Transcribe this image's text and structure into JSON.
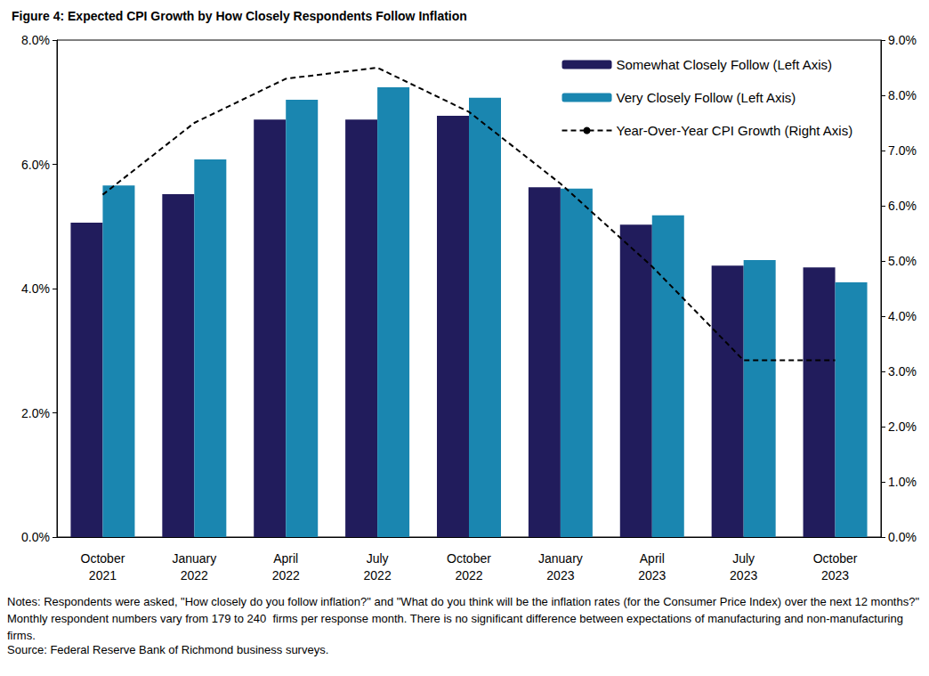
{
  "chart_data": {
    "type": "bar",
    "title": "Figure 4: Expected CPI Growth by How Closely Respondents Follow Inflation",
    "notes": "Notes: Respondents were asked, \"How closely do you follow inflation?\" and \"What do you think will be the inflation rates (for the Consumer Price Index) over the next 12 months?\" Monthly respondent numbers vary from 179 to 240  firms per response month. There is no significant difference between expectations of manufacturing and non-manufacturing firms.",
    "source": "Source: Federal Reserve Bank of Richmond business surveys.",
    "categories": [
      "October 2021",
      "January 2022",
      "April 2022",
      "July 2022",
      "October 2022",
      "January 2023",
      "April 2023",
      "July 2023",
      "October 2023"
    ],
    "series": [
      {
        "name": "Somewhat Closely Follow (Left Axis)",
        "type": "bar",
        "color": "#211c5c",
        "values": [
          5.06,
          5.52,
          6.72,
          6.72,
          6.78,
          5.63,
          5.03,
          4.37,
          4.34
        ]
      },
      {
        "name": "Very Closely Follow (Left Axis)",
        "type": "bar",
        "color": "#1a86b0",
        "values": [
          5.66,
          6.08,
          7.04,
          7.24,
          7.07,
          5.61,
          5.18,
          4.46,
          4.1
        ]
      },
      {
        "name": "Year-Over-Year CPI Growth (Right Axis)",
        "type": "line",
        "axis": "y2",
        "color": "#000000",
        "marker": "none",
        "line_style": "dashed",
        "values": [
          6.2,
          7.5,
          8.3,
          8.5,
          7.7,
          6.4,
          4.9,
          3.2,
          3.2
        ]
      }
    ],
    "ylim": [
      0,
      8
    ],
    "yticks": [
      {
        "value": 0,
        "label": "0.0%"
      },
      {
        "value": 2,
        "label": "2.0%"
      },
      {
        "value": 4,
        "label": "4.0%"
      },
      {
        "value": 6,
        "label": "6.0%"
      },
      {
        "value": 8,
        "label": "8.0%"
      }
    ],
    "y2lim": [
      0,
      9
    ],
    "y2ticks": [
      {
        "value": 0,
        "label": "0.0%"
      },
      {
        "value": 1,
        "label": "1.0%"
      },
      {
        "value": 2,
        "label": "2.0%"
      },
      {
        "value": 3,
        "label": "3.0%"
      },
      {
        "value": 4,
        "label": "4.0%"
      },
      {
        "value": 5,
        "label": "5.0%"
      },
      {
        "value": 6,
        "label": "6.0%"
      },
      {
        "value": 7,
        "label": "7.0%"
      },
      {
        "value": 8,
        "label": "8.0%"
      },
      {
        "value": 9,
        "label": "9.0%"
      }
    ],
    "grid": false,
    "legend": "top-right"
  }
}
